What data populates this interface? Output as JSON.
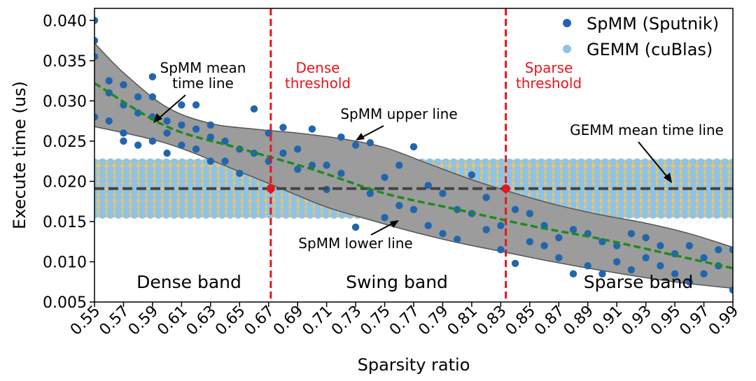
{
  "chart_data": {
    "type": "scatter",
    "xlabel": "Sparsity ratio",
    "ylabel": "Execute time (us)",
    "xlim": [
      0.55,
      0.99
    ],
    "ylim": [
      0.005,
      0.0415
    ],
    "x_ticks": [
      "0.55",
      "0.57",
      "0.59",
      "0.61",
      "0.63",
      "0.65",
      "0.67",
      "0.69",
      "0.71",
      "0.73",
      "0.75",
      "0.77",
      "0.79",
      "0.81",
      "0.83",
      "0.85",
      "0.87",
      "0.89",
      "0.91",
      "0.93",
      "0.95",
      "0.97",
      "0.99"
    ],
    "y_ticks": [
      "0.005",
      "0.010",
      "0.015",
      "0.020",
      "0.025",
      "0.030",
      "0.035",
      "0.040"
    ],
    "legend": [
      {
        "label": "SpMM (Sputnik)",
        "color": "#2166ac"
      },
      {
        "label": "GEMM (cuBlas)",
        "color": "#8ec3e6"
      }
    ],
    "series": [
      {
        "name": "SpMM (Sputnik)",
        "color": "#2166ac",
        "x": [
          0.55,
          0.55,
          0.55,
          0.55,
          0.56,
          0.56,
          0.56,
          0.57,
          0.57,
          0.57,
          0.57,
          0.58,
          0.58,
          0.58,
          0.59,
          0.59,
          0.59,
          0.59,
          0.6,
          0.6,
          0.6,
          0.61,
          0.61,
          0.61,
          0.62,
          0.62,
          0.62,
          0.63,
          0.63,
          0.63,
          0.64,
          0.64,
          0.65,
          0.65,
          0.66,
          0.66,
          0.67,
          0.67,
          0.68,
          0.68,
          0.69,
          0.69,
          0.7,
          0.7,
          0.71,
          0.71,
          0.72,
          0.72,
          0.73,
          0.73,
          0.74,
          0.74,
          0.75,
          0.75,
          0.76,
          0.76,
          0.77,
          0.77,
          0.78,
          0.78,
          0.79,
          0.79,
          0.8,
          0.8,
          0.81,
          0.81,
          0.82,
          0.82,
          0.83,
          0.83,
          0.84,
          0.84,
          0.85,
          0.85,
          0.86,
          0.86,
          0.87,
          0.87,
          0.88,
          0.88,
          0.89,
          0.89,
          0.9,
          0.9,
          0.91,
          0.91,
          0.92,
          0.92,
          0.93,
          0.93,
          0.94,
          0.94,
          0.95,
          0.95,
          0.96,
          0.96,
          0.97,
          0.97,
          0.98,
          0.98,
          0.99,
          0.99
        ],
        "y": [
          0.04,
          0.0375,
          0.0355,
          0.028,
          0.0325,
          0.031,
          0.0275,
          0.032,
          0.0295,
          0.026,
          0.025,
          0.0305,
          0.0285,
          0.0245,
          0.033,
          0.0305,
          0.028,
          0.025,
          0.0275,
          0.026,
          0.0235,
          0.0295,
          0.027,
          0.0245,
          0.0295,
          0.0265,
          0.024,
          0.027,
          0.0255,
          0.0225,
          0.025,
          0.0225,
          0.024,
          0.021,
          0.029,
          0.0235,
          0.026,
          0.0225,
          0.0267,
          0.0235,
          0.024,
          0.0215,
          0.0265,
          0.022,
          0.022,
          0.019,
          0.0255,
          0.021,
          0.0245,
          0.0143,
          0.0248,
          0.0185,
          0.0205,
          0.0155,
          0.022,
          0.017,
          0.0243,
          0.0165,
          0.0195,
          0.0145,
          0.0185,
          0.0135,
          0.0165,
          0.0128,
          0.0208,
          0.016,
          0.018,
          0.014,
          0.0145,
          0.0115,
          0.0165,
          0.0098,
          0.016,
          0.0125,
          0.0145,
          0.012,
          0.013,
          0.0105,
          0.014,
          0.0085,
          0.0135,
          0.0095,
          0.0125,
          0.0085,
          0.012,
          0.01,
          0.0135,
          0.009,
          0.013,
          0.0105,
          0.012,
          0.0095,
          0.011,
          0.0085,
          0.012,
          0.0075,
          0.0105,
          0.0085,
          0.0115,
          0.0095,
          0.0115,
          0.0065
        ]
      },
      {
        "name": "GEMM (cuBlas)",
        "color": "#8ec3e6",
        "x_start": 0.55,
        "x_step": 0.0055,
        "y_values": [
          0.0158,
          0.0165,
          0.0172,
          0.018,
          0.0187,
          0.0194,
          0.0201,
          0.0208,
          0.0215,
          0.0224
        ]
      },
      {
        "name": "SpMM mean time line",
        "color": "#1e8a1e",
        "x": [
          0.55,
          0.6,
          0.65,
          0.7,
          0.75,
          0.8,
          0.85,
          0.9,
          0.95,
          0.99
        ],
        "y": [
          0.0322,
          0.0268,
          0.0241,
          0.0215,
          0.0185,
          0.0165,
          0.0145,
          0.0128,
          0.0108,
          0.0092
        ]
      },
      {
        "name": "SpMM upper line",
        "color": "#555555",
        "x": [
          0.55,
          0.57,
          0.6,
          0.63,
          0.66,
          0.69,
          0.72,
          0.75,
          0.78,
          0.81,
          0.84,
          0.87,
          0.9,
          0.93,
          0.96,
          0.99
        ],
        "y": [
          0.0372,
          0.0335,
          0.0292,
          0.0272,
          0.0265,
          0.026,
          0.0253,
          0.0242,
          0.0222,
          0.0202,
          0.0185,
          0.017,
          0.0158,
          0.0148,
          0.0135,
          0.0118
        ]
      },
      {
        "name": "SpMM lower line",
        "color": "#555555",
        "x": [
          0.55,
          0.6,
          0.65,
          0.68,
          0.71,
          0.74,
          0.77,
          0.8,
          0.83,
          0.86,
          0.89,
          0.92,
          0.95,
          0.99
        ],
        "y": [
          0.0268,
          0.0247,
          0.0212,
          0.019,
          0.0168,
          0.0152,
          0.0137,
          0.0124,
          0.0113,
          0.0102,
          0.0092,
          0.0083,
          0.0075,
          0.0067
        ]
      }
    ],
    "gemm_mean": 0.0191,
    "gemm_band": [
      0.0155,
      0.0227
    ],
    "thresholds": [
      {
        "label_line1": "Dense",
        "label_line2": "threshold",
        "x": 0.6715
      },
      {
        "label_line1": "Sparse",
        "label_line2": "threshold",
        "x": 0.8335
      }
    ],
    "annotations": {
      "spmm_mean_line1": "SpMM mean",
      "spmm_mean_line2": "time line",
      "spmm_upper": "SpMM upper line",
      "spmm_lower": "SpMM lower line",
      "gemm_mean": "GEMM mean time line"
    },
    "bands": [
      {
        "label": "Dense band"
      },
      {
        "label": "Swing band"
      },
      {
        "label": "Sparse band"
      }
    ],
    "colors": {
      "band_fill": "#f5c25c",
      "spread_fill": "#9c9c9c",
      "threshold": "#e8141c",
      "gemm_mean_line": "#444444"
    }
  }
}
